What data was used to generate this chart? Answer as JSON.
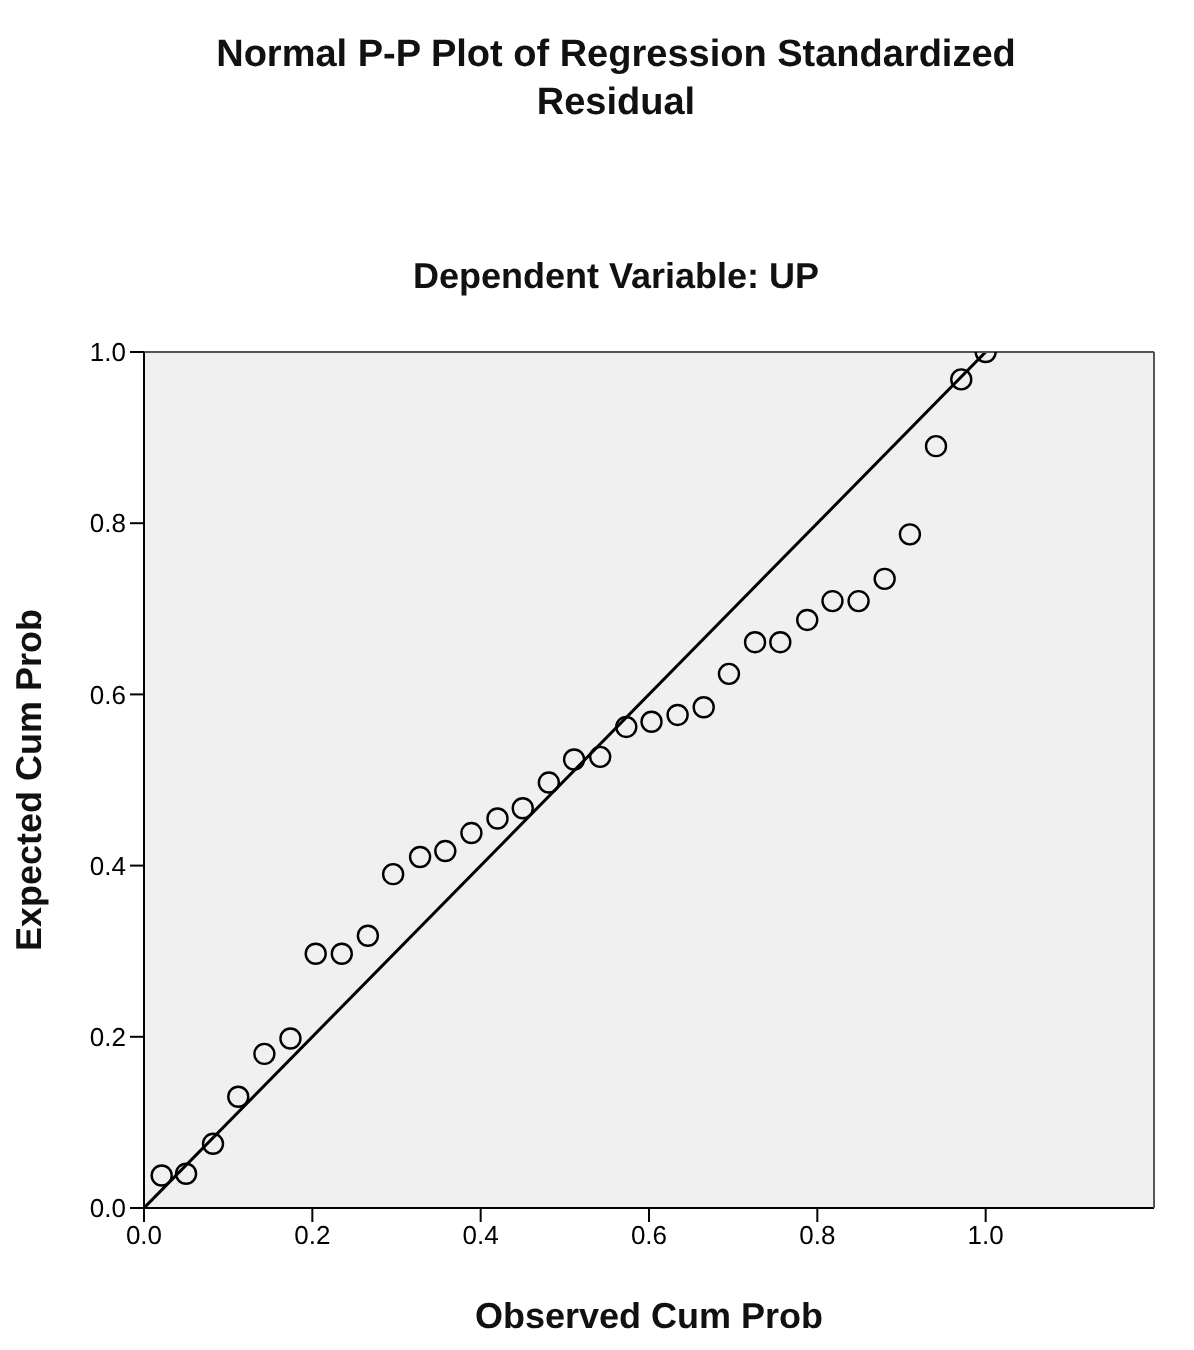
{
  "chart_data": {
    "type": "scatter",
    "title": "Normal P-P Plot of Regression Standardized Residual",
    "subtitle": "Dependent Variable: UP",
    "xlabel": "Observed Cum Prob",
    "ylabel": "Expected Cum Prob",
    "xlim": [
      0,
      1.2
    ],
    "ylim": [
      0,
      1.0
    ],
    "xticks": [
      {
        "value": 0,
        "label": "0.0"
      },
      0.2,
      0.4,
      0.6,
      0.8,
      {
        "value": 1,
        "label": "1.0"
      }
    ],
    "yticks": [
      {
        "value": 0,
        "label": "0.0"
      },
      0.2,
      0.4,
      0.6,
      0.8,
      {
        "value": 1,
        "label": "1.0"
      }
    ],
    "line_style": "solid",
    "series": [
      {
        "marker": "circle",
        "color": "#000000",
        "x": [
          0.021,
          0.05,
          0.082,
          0.112,
          0.143,
          0.174,
          0.204,
          0.235,
          0.266,
          0.296,
          0.328,
          0.358,
          0.389,
          0.42,
          0.45,
          0.481,
          0.511,
          0.542,
          0.573,
          0.603,
          0.634,
          0.665,
          0.695,
          0.726,
          0.756,
          0.788,
          0.818,
          0.849,
          0.88,
          0.91,
          0.941,
          0.971,
          1.0
        ],
        "values": [
          0.038,
          0.04,
          0.075,
          0.13,
          0.18,
          0.198,
          0.297,
          0.297,
          0.318,
          0.39,
          0.41,
          0.417,
          0.438,
          0.455,
          0.467,
          0.497,
          0.524,
          0.527,
          0.562,
          0.568,
          0.576,
          0.585,
          0.624,
          0.661,
          0.661,
          0.687,
          0.709,
          0.709,
          0.735,
          0.787,
          0.89,
          0.968,
          1.0
        ]
      },
      {
        "type": "line",
        "color": "#000000",
        "x": [
          0,
          1
        ],
        "values": [
          0,
          1
        ]
      }
    ]
  }
}
